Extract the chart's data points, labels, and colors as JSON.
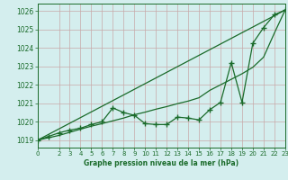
{
  "title": "Graphe pression niveau de la mer (hPa)",
  "bg_color": "#d4eeee",
  "grid_color": "#c8a8a8",
  "line_color": "#1a6b2a",
  "xlim": [
    0,
    23
  ],
  "ylim": [
    1018.6,
    1026.4
  ],
  "yticks": [
    1019,
    1020,
    1021,
    1022,
    1023,
    1024,
    1025,
    1026
  ],
  "xticks": [
    0,
    2,
    3,
    4,
    5,
    6,
    7,
    8,
    9,
    10,
    11,
    12,
    13,
    14,
    15,
    16,
    17,
    18,
    19,
    20,
    21,
    22,
    23
  ],
  "x": [
    0,
    1,
    2,
    3,
    4,
    5,
    6,
    7,
    8,
    9,
    10,
    11,
    12,
    13,
    14,
    15,
    16,
    17,
    18,
    19,
    20,
    21,
    22,
    23
  ],
  "pressure": [
    1019.0,
    1019.2,
    1019.4,
    1019.55,
    1019.65,
    1019.85,
    1020.0,
    1020.75,
    1020.5,
    1020.35,
    1019.9,
    1019.85,
    1019.85,
    1020.25,
    1020.2,
    1020.1,
    1020.65,
    1021.05,
    1023.2,
    1021.05,
    1024.25,
    1025.1,
    1025.8,
    1026.05
  ],
  "line_smooth": [
    1019.0,
    1019.13,
    1019.26,
    1019.43,
    1019.6,
    1019.76,
    1019.9,
    1020.05,
    1020.2,
    1020.38,
    1020.52,
    1020.68,
    1020.82,
    1020.98,
    1021.12,
    1021.3,
    1021.7,
    1022.0,
    1022.3,
    1022.6,
    1022.95,
    1023.5,
    1024.8,
    1026.05
  ]
}
